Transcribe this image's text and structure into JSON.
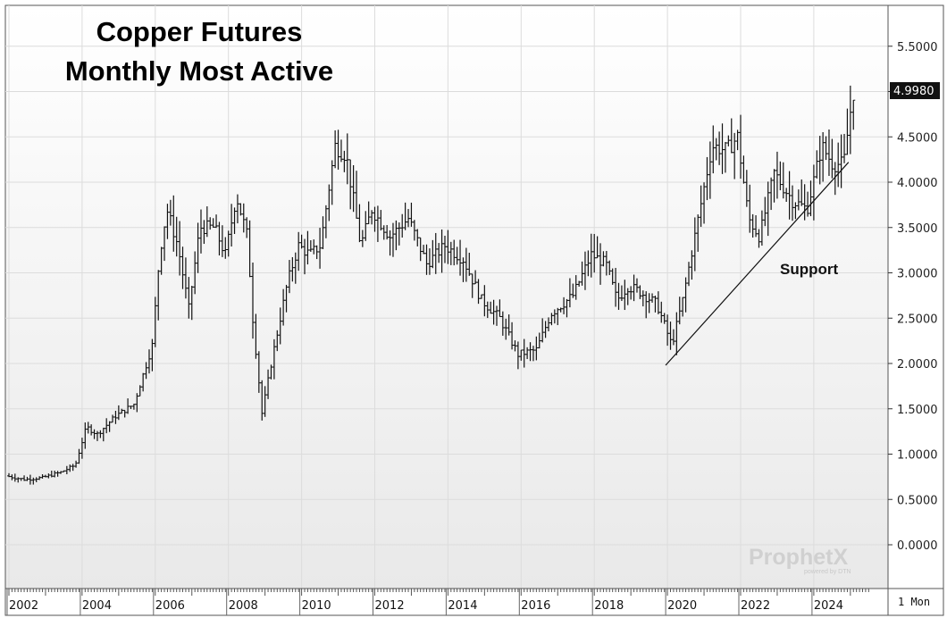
{
  "chart_data": {
    "type": "ohlc",
    "title_line1": "Copper Futures",
    "title_line2": "Monthly Most Active",
    "xlabel": "",
    "ylabel": "",
    "x_ticks": [
      "2002",
      "2004",
      "2006",
      "2008",
      "2010",
      "2012",
      "2014",
      "2016",
      "2018",
      "2020",
      "2022",
      "2024"
    ],
    "y_ticks": [
      "0.0000",
      "0.5000",
      "1.0000",
      "1.5000",
      "2.0000",
      "2.5000",
      "3.0000",
      "3.5000",
      "4.0000",
      "4.5000",
      "5.0000",
      "5.5000"
    ],
    "ylim": [
      -0.2,
      5.9
    ],
    "xlim": [
      2002.0,
      2025.5
    ],
    "grid": true,
    "last_price": "4.9980",
    "period_label": "1 Mon",
    "watermark": "ProphetX",
    "watermark_sub": "powered by DTN",
    "annotations": [
      {
        "text": "Support"
      }
    ],
    "support_line": {
      "from": [
        2019.95,
        1.98
      ],
      "to": [
        2024.95,
        4.22
      ]
    },
    "waypoints": [
      [
        2002.0,
        0.76
      ],
      [
        2002.5,
        0.72
      ],
      [
        2003.0,
        0.74
      ],
      [
        2003.5,
        0.8
      ],
      [
        2003.9,
        0.88
      ],
      [
        2004.2,
        1.3
      ],
      [
        2004.5,
        1.22
      ],
      [
        2005.0,
        1.42
      ],
      [
        2005.5,
        1.55
      ],
      [
        2006.0,
        2.2
      ],
      [
        2006.2,
        3.2
      ],
      [
        2006.4,
        3.7
      ],
      [
        2006.7,
        3.3
      ],
      [
        2007.0,
        2.6
      ],
      [
        2007.3,
        3.5
      ],
      [
        2007.7,
        3.5
      ],
      [
        2008.0,
        3.2
      ],
      [
        2008.3,
        3.85
      ],
      [
        2008.6,
        3.4
      ],
      [
        2008.75,
        2.5
      ],
      [
        2009.0,
        1.45
      ],
      [
        2009.3,
        2.1
      ],
      [
        2009.7,
        2.9
      ],
      [
        2010.0,
        3.3
      ],
      [
        2010.3,
        3.2
      ],
      [
        2010.6,
        3.3
      ],
      [
        2011.0,
        4.4
      ],
      [
        2011.3,
        4.3
      ],
      [
        2011.7,
        3.3
      ],
      [
        2012.0,
        3.7
      ],
      [
        2012.5,
        3.4
      ],
      [
        2013.0,
        3.6
      ],
      [
        2013.5,
        3.1
      ],
      [
        2014.0,
        3.3
      ],
      [
        2014.5,
        3.15
      ],
      [
        2015.0,
        2.7
      ],
      [
        2015.5,
        2.5
      ],
      [
        2016.0,
        2.1
      ],
      [
        2016.5,
        2.15
      ],
      [
        2016.9,
        2.55
      ],
      [
        2017.5,
        2.75
      ],
      [
        2018.0,
        3.2
      ],
      [
        2018.4,
        3.1
      ],
      [
        2018.7,
        2.7
      ],
      [
        2019.0,
        2.85
      ],
      [
        2019.3,
        2.8
      ],
      [
        2019.8,
        2.65
      ],
      [
        2020.2,
        2.2
      ],
      [
        2020.5,
        2.7
      ],
      [
        2020.9,
        3.55
      ],
      [
        2021.3,
        4.4
      ],
      [
        2021.7,
        4.35
      ],
      [
        2022.0,
        4.5
      ],
      [
        2022.3,
        3.6
      ],
      [
        2022.6,
        3.4
      ],
      [
        2023.0,
        4.1
      ],
      [
        2023.5,
        3.8
      ],
      [
        2023.9,
        3.7
      ],
      [
        2024.3,
        4.4
      ],
      [
        2024.6,
        4.2
      ],
      [
        2024.9,
        4.2
      ],
      [
        2025.15,
        4.99
      ]
    ]
  }
}
